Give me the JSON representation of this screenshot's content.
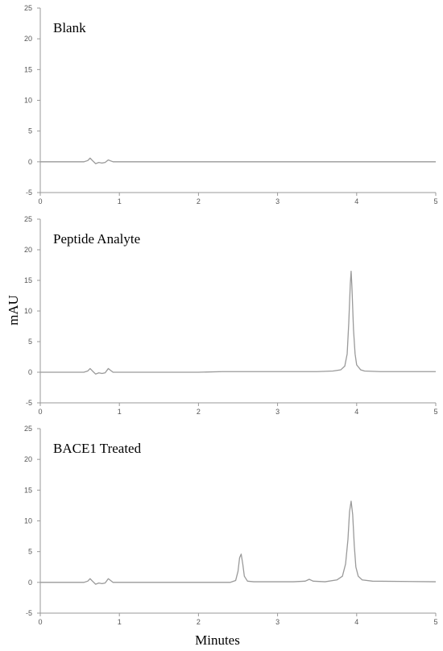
{
  "chart_data": {
    "type": "line",
    "xlabel": "Minutes",
    "ylabel": "mAU",
    "xlim": [
      0,
      5
    ],
    "ylim": [
      -5,
      25
    ],
    "x_ticks": [
      "0",
      "1",
      "2",
      "3",
      "4",
      "5"
    ],
    "y_ticks": [
      "-5",
      "0",
      "5",
      "10",
      "15",
      "20",
      "25"
    ],
    "grid": false,
    "line_color": "#9a9a9a",
    "axis_color": "#999999",
    "panels": [
      {
        "title": "Blank",
        "series": [
          {
            "x": [
              0,
              0.55,
              0.6,
              0.63,
              0.66,
              0.7,
              0.74,
              0.78,
              0.82,
              0.86,
              0.88,
              0.92,
              1.0,
              5.0
            ],
            "y": [
              0,
              0,
              0.2,
              0.6,
              0.2,
              -0.3,
              -0.1,
              -0.2,
              -0.1,
              0.3,
              0.2,
              0,
              0,
              0
            ]
          }
        ]
      },
      {
        "title": "Peptide Analyte",
        "series": [
          {
            "x": [
              0,
              0.55,
              0.6,
              0.63,
              0.66,
              0.7,
              0.74,
              0.78,
              0.82,
              0.86,
              0.88,
              0.92,
              1.0,
              2.0,
              2.3,
              2.6,
              3.0,
              3.3,
              3.5,
              3.7,
              3.8,
              3.85,
              3.88,
              3.9,
              3.92,
              3.93,
              3.94,
              3.96,
              3.98,
              4.0,
              4.05,
              4.1,
              4.3,
              5.0
            ],
            "y": [
              0,
              0,
              0.2,
              0.6,
              0.2,
              -0.3,
              -0.1,
              -0.2,
              -0.1,
              0.6,
              0.4,
              0,
              0,
              0,
              0.1,
              0.1,
              0.1,
              0.1,
              0.1,
              0.2,
              0.4,
              1.0,
              3.0,
              8.0,
              14.5,
              16.5,
              14.0,
              7.0,
              3.0,
              1.2,
              0.4,
              0.2,
              0.1,
              0.1
            ]
          }
        ]
      },
      {
        "title": "BACE1 Treated",
        "series": [
          {
            "x": [
              0,
              0.55,
              0.6,
              0.63,
              0.66,
              0.7,
              0.74,
              0.78,
              0.82,
              0.86,
              0.88,
              0.92,
              1.0,
              2.0,
              2.4,
              2.47,
              2.5,
              2.52,
              2.54,
              2.56,
              2.58,
              2.62,
              2.7,
              3.2,
              3.35,
              3.4,
              3.45,
              3.6,
              3.75,
              3.82,
              3.86,
              3.89,
              3.91,
              3.93,
              3.95,
              3.97,
              3.99,
              4.02,
              4.07,
              4.2,
              5.0
            ],
            "y": [
              0,
              0,
              0.2,
              0.6,
              0.2,
              -0.3,
              -0.1,
              -0.2,
              -0.1,
              0.6,
              0.4,
              0,
              0,
              0,
              0,
              0.3,
              1.8,
              4.0,
              4.6,
              3.0,
              1.0,
              0.2,
              0.1,
              0.1,
              0.2,
              0.5,
              0.2,
              0.1,
              0.4,
              1.0,
              3.0,
              7.0,
              11.5,
              13.2,
              11.0,
              6.0,
              2.5,
              1.0,
              0.4,
              0.2,
              0.1
            ]
          }
        ]
      }
    ]
  }
}
